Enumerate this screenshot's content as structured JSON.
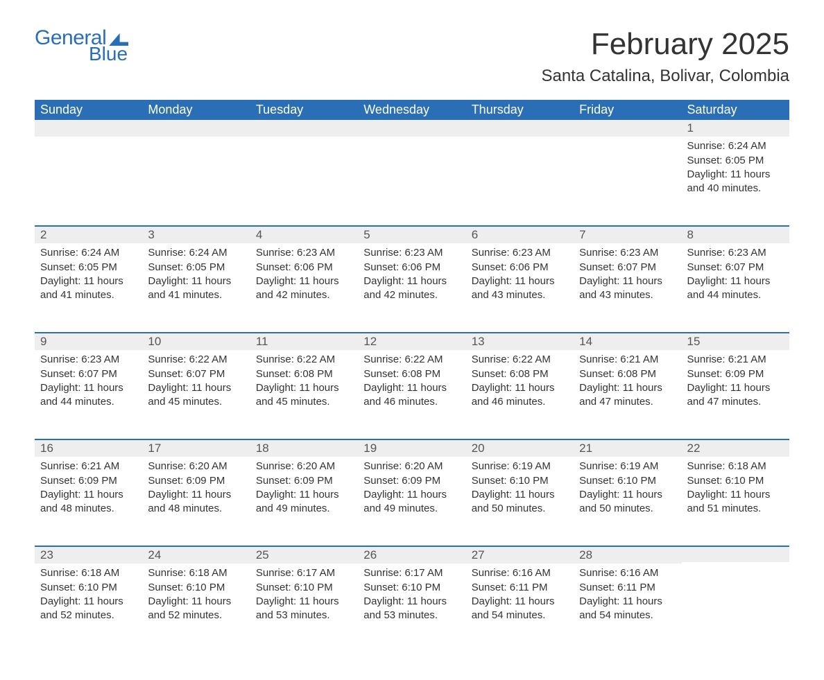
{
  "logo": {
    "word1": "General",
    "word2": "Blue"
  },
  "title": "February 2025",
  "location": "Santa Catalina, Bolivar, Colombia",
  "colors": {
    "brand": "#2a6fb5",
    "header_bg": "#2a6fb5",
    "header_text": "#ffffff",
    "daynum_bg": "#eeeeee",
    "row_divider": "#2a6fb5",
    "text": "#333333",
    "background": "#ffffff"
  },
  "typography": {
    "title_fontsize_pt": 33,
    "location_fontsize_pt": 18,
    "header_fontsize_pt": 14,
    "body_fontsize_pt": 11,
    "font_family": "Segoe UI"
  },
  "calendar": {
    "type": "table",
    "columns": [
      "Sunday",
      "Monday",
      "Tuesday",
      "Wednesday",
      "Thursday",
      "Friday",
      "Saturday"
    ],
    "weeks": [
      [
        null,
        null,
        null,
        null,
        null,
        null,
        {
          "n": "1",
          "sunrise": "Sunrise: 6:24 AM",
          "sunset": "Sunset: 6:05 PM",
          "daylight": "Daylight: 11 hours and 40 minutes."
        }
      ],
      [
        {
          "n": "2",
          "sunrise": "Sunrise: 6:24 AM",
          "sunset": "Sunset: 6:05 PM",
          "daylight": "Daylight: 11 hours and 41 minutes."
        },
        {
          "n": "3",
          "sunrise": "Sunrise: 6:24 AM",
          "sunset": "Sunset: 6:05 PM",
          "daylight": "Daylight: 11 hours and 41 minutes."
        },
        {
          "n": "4",
          "sunrise": "Sunrise: 6:23 AM",
          "sunset": "Sunset: 6:06 PM",
          "daylight": "Daylight: 11 hours and 42 minutes."
        },
        {
          "n": "5",
          "sunrise": "Sunrise: 6:23 AM",
          "sunset": "Sunset: 6:06 PM",
          "daylight": "Daylight: 11 hours and 42 minutes."
        },
        {
          "n": "6",
          "sunrise": "Sunrise: 6:23 AM",
          "sunset": "Sunset: 6:06 PM",
          "daylight": "Daylight: 11 hours and 43 minutes."
        },
        {
          "n": "7",
          "sunrise": "Sunrise: 6:23 AM",
          "sunset": "Sunset: 6:07 PM",
          "daylight": "Daylight: 11 hours and 43 minutes."
        },
        {
          "n": "8",
          "sunrise": "Sunrise: 6:23 AM",
          "sunset": "Sunset: 6:07 PM",
          "daylight": "Daylight: 11 hours and 44 minutes."
        }
      ],
      [
        {
          "n": "9",
          "sunrise": "Sunrise: 6:23 AM",
          "sunset": "Sunset: 6:07 PM",
          "daylight": "Daylight: 11 hours and 44 minutes."
        },
        {
          "n": "10",
          "sunrise": "Sunrise: 6:22 AM",
          "sunset": "Sunset: 6:07 PM",
          "daylight": "Daylight: 11 hours and 45 minutes."
        },
        {
          "n": "11",
          "sunrise": "Sunrise: 6:22 AM",
          "sunset": "Sunset: 6:08 PM",
          "daylight": "Daylight: 11 hours and 45 minutes."
        },
        {
          "n": "12",
          "sunrise": "Sunrise: 6:22 AM",
          "sunset": "Sunset: 6:08 PM",
          "daylight": "Daylight: 11 hours and 46 minutes."
        },
        {
          "n": "13",
          "sunrise": "Sunrise: 6:22 AM",
          "sunset": "Sunset: 6:08 PM",
          "daylight": "Daylight: 11 hours and 46 minutes."
        },
        {
          "n": "14",
          "sunrise": "Sunrise: 6:21 AM",
          "sunset": "Sunset: 6:08 PM",
          "daylight": "Daylight: 11 hours and 47 minutes."
        },
        {
          "n": "15",
          "sunrise": "Sunrise: 6:21 AM",
          "sunset": "Sunset: 6:09 PM",
          "daylight": "Daylight: 11 hours and 47 minutes."
        }
      ],
      [
        {
          "n": "16",
          "sunrise": "Sunrise: 6:21 AM",
          "sunset": "Sunset: 6:09 PM",
          "daylight": "Daylight: 11 hours and 48 minutes."
        },
        {
          "n": "17",
          "sunrise": "Sunrise: 6:20 AM",
          "sunset": "Sunset: 6:09 PM",
          "daylight": "Daylight: 11 hours and 48 minutes."
        },
        {
          "n": "18",
          "sunrise": "Sunrise: 6:20 AM",
          "sunset": "Sunset: 6:09 PM",
          "daylight": "Daylight: 11 hours and 49 minutes."
        },
        {
          "n": "19",
          "sunrise": "Sunrise: 6:20 AM",
          "sunset": "Sunset: 6:09 PM",
          "daylight": "Daylight: 11 hours and 49 minutes."
        },
        {
          "n": "20",
          "sunrise": "Sunrise: 6:19 AM",
          "sunset": "Sunset: 6:10 PM",
          "daylight": "Daylight: 11 hours and 50 minutes."
        },
        {
          "n": "21",
          "sunrise": "Sunrise: 6:19 AM",
          "sunset": "Sunset: 6:10 PM",
          "daylight": "Daylight: 11 hours and 50 minutes."
        },
        {
          "n": "22",
          "sunrise": "Sunrise: 6:18 AM",
          "sunset": "Sunset: 6:10 PM",
          "daylight": "Daylight: 11 hours and 51 minutes."
        }
      ],
      [
        {
          "n": "23",
          "sunrise": "Sunrise: 6:18 AM",
          "sunset": "Sunset: 6:10 PM",
          "daylight": "Daylight: 11 hours and 52 minutes."
        },
        {
          "n": "24",
          "sunrise": "Sunrise: 6:18 AM",
          "sunset": "Sunset: 6:10 PM",
          "daylight": "Daylight: 11 hours and 52 minutes."
        },
        {
          "n": "25",
          "sunrise": "Sunrise: 6:17 AM",
          "sunset": "Sunset: 6:10 PM",
          "daylight": "Daylight: 11 hours and 53 minutes."
        },
        {
          "n": "26",
          "sunrise": "Sunrise: 6:17 AM",
          "sunset": "Sunset: 6:10 PM",
          "daylight": "Daylight: 11 hours and 53 minutes."
        },
        {
          "n": "27",
          "sunrise": "Sunrise: 6:16 AM",
          "sunset": "Sunset: 6:11 PM",
          "daylight": "Daylight: 11 hours and 54 minutes."
        },
        {
          "n": "28",
          "sunrise": "Sunrise: 6:16 AM",
          "sunset": "Sunset: 6:11 PM",
          "daylight": "Daylight: 11 hours and 54 minutes."
        },
        null
      ]
    ]
  }
}
